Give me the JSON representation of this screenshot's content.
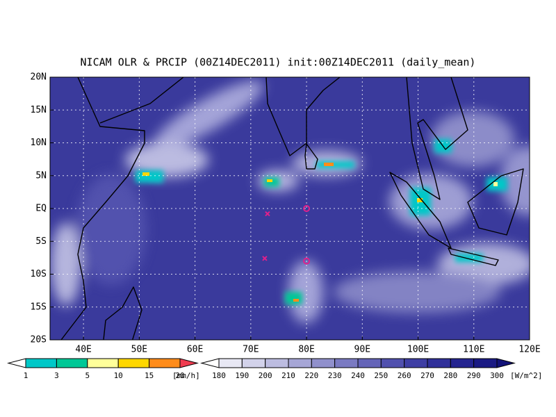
{
  "title": "NICAM OLR & PRCIP (00Z14DEC2011) init:00Z14DEC2011 (daily_mean)",
  "map": {
    "xlim": [
      34,
      120
    ],
    "ylim": [
      -20,
      20
    ],
    "xticks": [
      {
        "value": 40,
        "label": "40E"
      },
      {
        "value": 50,
        "label": "50E"
      },
      {
        "value": 60,
        "label": "60E"
      },
      {
        "value": 70,
        "label": "70E"
      },
      {
        "value": 80,
        "label": "80E"
      },
      {
        "value": 90,
        "label": "90E"
      },
      {
        "value": 100,
        "label": "100E"
      },
      {
        "value": 110,
        "label": "110E"
      },
      {
        "value": 120,
        "label": "120E"
      }
    ],
    "yticks": [
      {
        "value": 20,
        "label": "20N"
      },
      {
        "value": 15,
        "label": "15N"
      },
      {
        "value": 10,
        "label": "10N"
      },
      {
        "value": 5,
        "label": "5N"
      },
      {
        "value": 0,
        "label": "EQ"
      },
      {
        "value": -5,
        "label": "5S"
      },
      {
        "value": -10,
        "label": "10S"
      },
      {
        "value": -15,
        "label": "15S"
      },
      {
        "value": -20,
        "label": "20S"
      }
    ],
    "grid": true,
    "markers": [
      {
        "symbol": "x",
        "lon": 73,
        "lat": -0.8,
        "color": "#e0208c"
      },
      {
        "symbol": "x",
        "lon": 72.5,
        "lat": -7.6,
        "color": "#e0208c"
      },
      {
        "symbol": "o",
        "lon": 80,
        "lat": 0,
        "color": "#e0208c"
      },
      {
        "symbol": "o",
        "lon": 80,
        "lat": -8,
        "color": "#e0208c"
      }
    ]
  },
  "precip_colorbar": {
    "levels": [
      1,
      3,
      5,
      10,
      15,
      20
    ],
    "unit": "[mm/h]",
    "colors": [
      "#ffffff",
      "#00c8c8",
      "#00c896",
      "#ffff9a",
      "#ffd700",
      "#ff8c1a",
      "#f03c50"
    ]
  },
  "olr_colorbar": {
    "levels": [
      180,
      190,
      200,
      210,
      220,
      230,
      240,
      250,
      260,
      270,
      280,
      290,
      300
    ],
    "unit": "[W/m^2]",
    "colors": [
      "#ffffff",
      "#e8e8f4",
      "#d2d2ea",
      "#bcbce0",
      "#a6a6d6",
      "#9090cc",
      "#7a7ac2",
      "#6464b8",
      "#5050ae",
      "#3e3ea4",
      "#30309a",
      "#242490",
      "#1a1a84",
      "#121278"
    ]
  }
}
